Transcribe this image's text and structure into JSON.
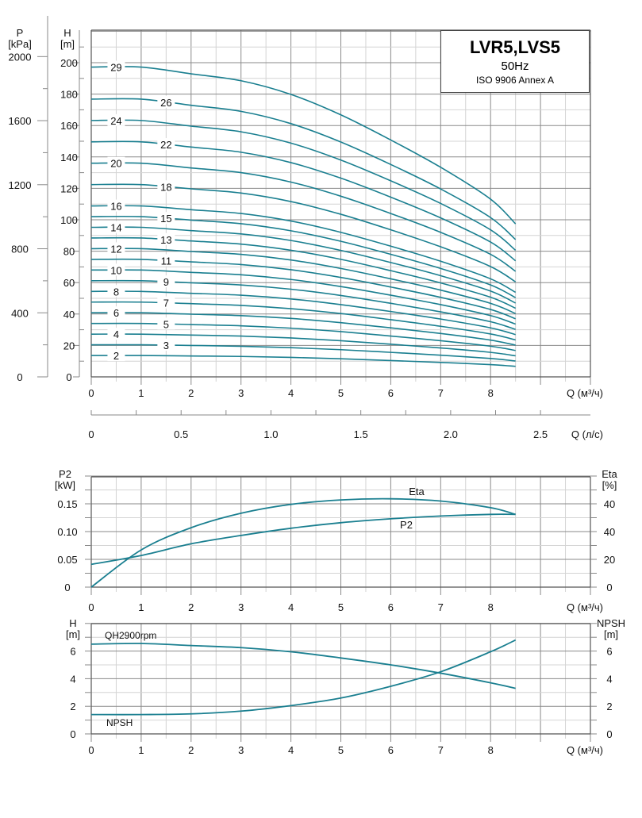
{
  "header": {
    "model": "LVR5,LVS5",
    "frequency": "50Hz",
    "standard": "ISO 9906 Annex A"
  },
  "colors": {
    "curve": "#1a7f90",
    "grid_major": "#8a8a8a",
    "grid_minor": "#d4d4d4"
  },
  "chart_data": [
    {
      "type": "line",
      "title": "LVR5,LVS5",
      "xlabel": "Q (м³/ч)",
      "xlabel2": "Q (л/с)",
      "ylabel": "H [m]",
      "ylabel_h": "H",
      "ylabel_h_unit": "[m]",
      "ylabel_p": "P",
      "ylabel_p_unit": "[kPa]",
      "xlim": [
        0,
        10
      ],
      "ylim": [
        0,
        220
      ],
      "x_ticks": [
        "0",
        "1",
        "2",
        "3",
        "4",
        "5",
        "6",
        "7",
        "8"
      ],
      "x2_ticks": [
        "0",
        "0.5",
        "1.0",
        "1.5",
        "2.0",
        "2.5"
      ],
      "y_ticks": [
        "0",
        "20",
        "40",
        "60",
        "80",
        "100",
        "120",
        "140",
        "160",
        "180",
        "200"
      ],
      "p_ticks": [
        "0",
        "400",
        "800",
        "1200",
        "1600",
        "2000"
      ],
      "grid": true,
      "x": [
        0,
        1,
        2,
        3,
        4,
        5,
        6,
        7,
        8,
        8.5
      ],
      "series": [
        {
          "name": "29",
          "values": [
            197.2,
            197.2,
            192.9,
            188.5,
            179.8,
            166.8,
            150.8,
            133.4,
            113.1,
            97.4
          ]
        },
        {
          "name": "26",
          "values": [
            176.8,
            176.8,
            172.9,
            169,
            161.2,
            149.5,
            135.2,
            119.6,
            101.4,
            87.4
          ]
        },
        {
          "name": "24",
          "values": [
            163.2,
            163.2,
            159.6,
            156,
            148.8,
            138,
            124.8,
            110.4,
            93.6,
            80.6
          ]
        },
        {
          "name": "22",
          "values": [
            149.6,
            149.6,
            146.3,
            143,
            136.4,
            126.5,
            114.4,
            101.2,
            85.8,
            73.9
          ]
        },
        {
          "name": "20",
          "values": [
            136,
            136,
            133,
            130,
            124,
            115,
            104,
            92,
            78,
            67.2
          ]
        },
        {
          "name": "18",
          "values": [
            122.4,
            122.4,
            119.7,
            117,
            111.6,
            103.5,
            93.6,
            82.8,
            70.2,
            60.5
          ]
        },
        {
          "name": "16",
          "values": [
            108.8,
            108.8,
            106.4,
            104,
            99.2,
            92,
            83.2,
            73.6,
            62.4,
            53.8
          ]
        },
        {
          "name": "15",
          "values": [
            102,
            102,
            99.8,
            97.5,
            93,
            86.3,
            78,
            69,
            58.5,
            50.4
          ]
        },
        {
          "name": "14",
          "values": [
            95.2,
            95.2,
            93.1,
            91,
            86.8,
            80.5,
            72.8,
            64.4,
            54.6,
            47
          ]
        },
        {
          "name": "13",
          "values": [
            88.4,
            88.4,
            86.5,
            84.5,
            80.6,
            74.8,
            67.6,
            59.8,
            50.7,
            43.7
          ]
        },
        {
          "name": "12",
          "values": [
            81.6,
            81.6,
            79.8,
            78,
            74.4,
            69,
            62.4,
            55.2,
            46.8,
            40.3
          ]
        },
        {
          "name": "11",
          "values": [
            74.8,
            74.8,
            73.2,
            71.5,
            68.2,
            63.3,
            57.2,
            50.6,
            42.9,
            37
          ]
        },
        {
          "name": "10",
          "values": [
            68,
            68,
            66.5,
            65,
            62,
            57.5,
            52,
            46,
            39,
            33.6
          ]
        },
        {
          "name": "9",
          "values": [
            61.2,
            61.2,
            59.9,
            58.5,
            55.8,
            51.8,
            46.8,
            41.4,
            35.1,
            30.2
          ]
        },
        {
          "name": "8",
          "values": [
            54.4,
            54.4,
            53.2,
            52,
            49.6,
            46,
            41.6,
            36.8,
            31.2,
            26.9
          ]
        },
        {
          "name": "7",
          "values": [
            47.6,
            47.6,
            46.6,
            45.5,
            43.4,
            40.3,
            36.4,
            32.2,
            27.3,
            23.5
          ]
        },
        {
          "name": "6",
          "values": [
            40.8,
            40.8,
            39.9,
            39,
            37.2,
            34.5,
            31.2,
            27.6,
            23.4,
            20.2
          ]
        },
        {
          "name": "5",
          "values": [
            34,
            34,
            33.3,
            32.5,
            31,
            28.8,
            26,
            23,
            19.5,
            16.8
          ]
        },
        {
          "name": "4",
          "values": [
            27.2,
            27.2,
            26.6,
            26,
            24.8,
            23,
            20.8,
            18.4,
            15.6,
            13.4
          ]
        },
        {
          "name": "3",
          "values": [
            20.4,
            20.4,
            20,
            19.5,
            18.6,
            17.3,
            15.6,
            13.8,
            11.7,
            10.1
          ]
        },
        {
          "name": "2",
          "values": [
            13.6,
            13.6,
            13.3,
            13,
            12.4,
            11.5,
            10.4,
            9.2,
            7.8,
            6.7
          ]
        }
      ]
    },
    {
      "type": "line",
      "xlabel": "Q (м³/ч)",
      "ylabel": "P2",
      "ylabel_unit": "[kW]",
      "ylabel_right": "Eta",
      "ylabel_right_unit": "[%]",
      "xlim": [
        0,
        10
      ],
      "ylim": [
        0,
        0.2
      ],
      "ylim_right": [
        0,
        80
      ],
      "x_ticks": [
        "0",
        "1",
        "2",
        "3",
        "4",
        "5",
        "6",
        "7",
        "8"
      ],
      "y_ticks": [
        "0",
        "0.05",
        "0.10",
        "0.15"
      ],
      "y_right_ticks": [
        "0",
        "20",
        "40",
        "40"
      ],
      "grid": true,
      "x": [
        0,
        1,
        2,
        3,
        4,
        5,
        6,
        7,
        8,
        8.5
      ],
      "series": [
        {
          "name": "Eta",
          "axis": "right",
          "values": [
            0,
            26.8,
            42.8,
            53.2,
            59.6,
            62.8,
            63.6,
            62,
            57.2,
            52.4
          ]
        },
        {
          "name": "P2",
          "axis": "left",
          "values": [
            0.041,
            0.057,
            0.078,
            0.093,
            0.106,
            0.116,
            0.123,
            0.128,
            0.131,
            0.131
          ]
        }
      ]
    },
    {
      "type": "line",
      "xlabel": "Q (м³/ч)",
      "ylabel": "H",
      "ylabel_unit": "[m]",
      "ylabel_right": "NPSH",
      "ylabel_right_unit": "[m]",
      "xlim": [
        0,
        10
      ],
      "ylim": [
        0,
        8
      ],
      "x_ticks": [
        "0",
        "1",
        "2",
        "3",
        "4",
        "5",
        "6",
        "7",
        "8"
      ],
      "y_ticks": [
        "0",
        "2",
        "4",
        "6"
      ],
      "y_right_ticks": [
        "0",
        "2",
        "4",
        "6"
      ],
      "grid": true,
      "x": [
        0,
        1,
        2,
        3,
        4,
        5,
        6,
        7,
        8,
        8.5
      ],
      "series": [
        {
          "name": "QH2900rpm",
          "values": [
            6.5,
            6.55,
            6.4,
            6.25,
            5.95,
            5.5,
            5.0,
            4.4,
            3.7,
            3.3
          ]
        },
        {
          "name": "NPSH",
          "values": [
            1.4,
            1.4,
            1.45,
            1.65,
            2.05,
            2.6,
            3.45,
            4.5,
            5.95,
            6.8
          ]
        }
      ]
    }
  ]
}
